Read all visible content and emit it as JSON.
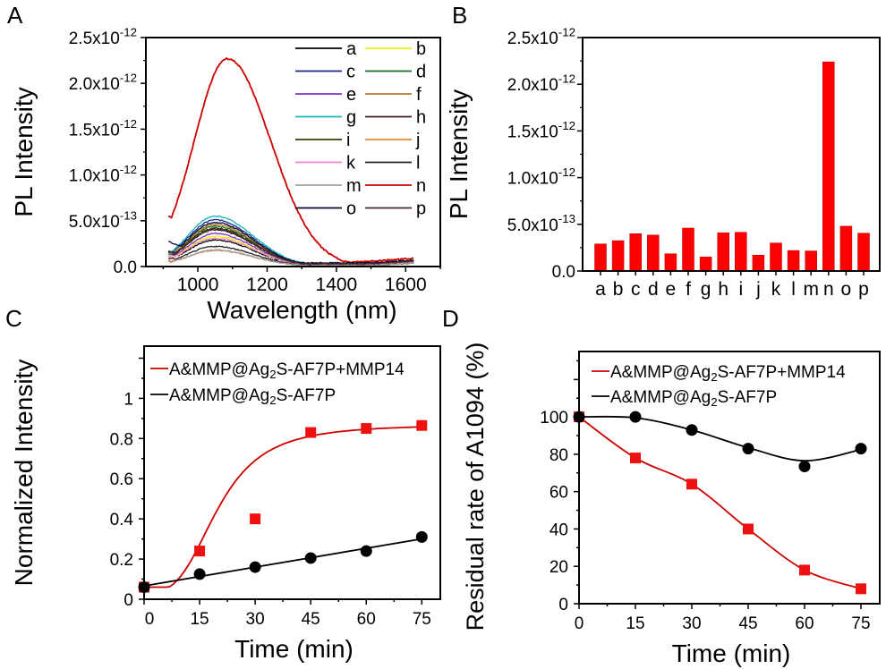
{
  "chart_data": [
    {
      "panel": "A",
      "type": "line",
      "xlabel": "Wavelength (nm)",
      "ylabel": "PL Intensity",
      "xlim": [
        850,
        1700
      ],
      "ylim": [
        0,
        2.5e-12
      ],
      "xticks": [
        1000,
        1200,
        1400,
        1600
      ],
      "xtick_labels": [
        "1000",
        "1200",
        "1400",
        "1600"
      ],
      "yticks": [
        0,
        5e-13,
        1e-12,
        1.5e-12,
        2e-12,
        2.5e-12
      ],
      "ytick_labels": [
        {
          "mant": "0.0",
          "exp": ""
        },
        {
          "mant": "5.0x10",
          "exp": "-13"
        },
        {
          "mant": "1.0x10",
          "exp": "-12"
        },
        {
          "mant": "1.5x10",
          "exp": "-12"
        },
        {
          "mant": "2.0x10",
          "exp": "-12"
        },
        {
          "mant": "2.5x10",
          "exp": "-12"
        }
      ],
      "legend_placement": "top-right",
      "x_range_data": [
        915,
        1625
      ],
      "series": [
        {
          "name": "a",
          "color": "#000000",
          "peak": 2.9e-13,
          "start": 1.6e-13,
          "end": 1.5e-14
        },
        {
          "name": "b",
          "color": "#f2f20a",
          "peak": 3.3e-13,
          "start": 1.4e-13,
          "end": 1e-14
        },
        {
          "name": "c",
          "color": "#1a2a8c",
          "peak": 5.1e-13,
          "start": 1.8e-13,
          "end": 3e-14
        },
        {
          "name": "d",
          "color": "#1e6e2e",
          "peak": 4.4e-13,
          "start": 1.7e-13,
          "end": 2.5e-14
        },
        {
          "name": "e",
          "color": "#7a33c9",
          "peak": 3.6e-13,
          "start": 1.5e-13,
          "end": 2e-14
        },
        {
          "name": "f",
          "color": "#b8782a",
          "peak": 4.6e-13,
          "start": 1.7e-13,
          "end": 2.5e-14
        },
        {
          "name": "g",
          "color": "#1fb5b5",
          "peak": 5.5e-13,
          "start": 1.6e-13,
          "end": 3e-14
        },
        {
          "name": "h",
          "color": "#3a1a1a",
          "peak": 4.1e-13,
          "start": 1.9e-13,
          "end": 3e-14
        },
        {
          "name": "i",
          "color": "#3d3d0a",
          "peak": 4.2e-13,
          "start": 1.9e-13,
          "end": 3e-14
        },
        {
          "name": "j",
          "color": "#e08a3c",
          "peak": 1.75e-13,
          "start": 7e-14,
          "end": 1e-14
        },
        {
          "name": "k",
          "color": "#ee88c8",
          "peak": 3.1e-13,
          "start": 1.2e-13,
          "end": 1.5e-14
        },
        {
          "name": "l",
          "color": "#222222",
          "peak": 2.2e-13,
          "start": 1e-13,
          "end": 1e-14
        },
        {
          "name": "m",
          "color": "#a0a0a0",
          "peak": 1.8e-13,
          "start": 6e-14,
          "end": 1e-14
        },
        {
          "name": "n",
          "color": "#cc0000",
          "peak": 2.27e-12,
          "start": 5.4e-13,
          "end": 1.2e-13
        },
        {
          "name": "o",
          "color": "#0a0a3a",
          "peak": 4.8e-13,
          "start": 3e-13,
          "end": 4e-14
        },
        {
          "name": "p",
          "color": "#4a2a2a",
          "peak": 4e-13,
          "start": 1.8e-13,
          "end": 3e-14
        }
      ],
      "peak_wavelength": {
        "n": 1085,
        "others": 1050
      }
    },
    {
      "panel": "B",
      "type": "bar",
      "xlabel": "",
      "ylabel": "PL Intensity",
      "ylim": [
        0,
        2.5e-12
      ],
      "yticks": [
        0,
        5e-13,
        1e-12,
        1.5e-12,
        2e-12,
        2.5e-12
      ],
      "ytick_labels": [
        {
          "mant": "0.0",
          "exp": ""
        },
        {
          "mant": "5.0x10",
          "exp": "-13"
        },
        {
          "mant": "1.0x10",
          "exp": "-12"
        },
        {
          "mant": "1.5x10",
          "exp": "-12"
        },
        {
          "mant": "2.0x10",
          "exp": "-12"
        },
        {
          "mant": "2.5x10",
          "exp": "-12"
        }
      ],
      "categories": [
        "a",
        "b",
        "c",
        "d",
        "e",
        "f",
        "g",
        "h",
        "i",
        "j",
        "k",
        "l",
        "m",
        "n",
        "o",
        "p"
      ],
      "values": [
        2.9e-13,
        3.25e-13,
        4e-13,
        3.85e-13,
        1.85e-13,
        4.6e-13,
        1.5e-13,
        4.1e-13,
        4.15e-13,
        1.7e-13,
        3e-13,
        2.2e-13,
        2.15e-13,
        2.24e-12,
        4.8e-13,
        4.05e-13
      ],
      "bar_color": "#ff0000"
    },
    {
      "panel": "C",
      "type": "scatter",
      "xlabel": "Time (min)",
      "ylabel": "Normalized Intensity",
      "xlim": [
        0,
        80
      ],
      "ylim": [
        0,
        1.26
      ],
      "xticks": [
        0,
        15,
        30,
        45,
        60,
        75
      ],
      "yticks": [
        0,
        0.2,
        0.4,
        0.6,
        0.8,
        1
      ],
      "ytick_labels": [
        "0",
        "0.2",
        "0.4",
        "0.6",
        "0.8",
        "1"
      ],
      "legend_placement": "top-left",
      "series": [
        {
          "name": "A&MMP@Ag",
          "sub": "2",
          "suffix": "S-AF7P+MMP14",
          "color": "#cc0000",
          "marker": "square",
          "marker_color": "#ee1111",
          "x": [
            0,
            15,
            30,
            45,
            60,
            75
          ],
          "y": [
            0.06,
            0.24,
            0.4,
            0.83,
            0.85,
            0.865
          ],
          "fit": "sigmoid"
        },
        {
          "name": "A&MMP@Ag",
          "sub": "2",
          "suffix": "S-AF7P",
          "color": "#000000",
          "marker": "circle",
          "marker_color": "#000000",
          "x": [
            0,
            15,
            30,
            45,
            60,
            75
          ],
          "y": [
            0.06,
            0.125,
            0.16,
            0.205,
            0.24,
            0.31
          ],
          "fit": "linear"
        }
      ]
    },
    {
      "panel": "D",
      "type": "scatter",
      "xlabel": "Time (min)",
      "ylabel": "Residual rate of A1094 (%)",
      "xlim": [
        0,
        80
      ],
      "ylim": [
        0,
        135
      ],
      "xticks": [
        0,
        15,
        30,
        45,
        60,
        75
      ],
      "yticks": [
        0,
        20,
        40,
        60,
        80,
        100
      ],
      "ytick_labels": [
        "0",
        "20",
        "40",
        "60",
        "80",
        "100"
      ],
      "legend_placement": "top-left",
      "series": [
        {
          "name": "A&MMP@Ag",
          "sub": "2",
          "suffix": "S-AF7P+MMP14",
          "color": "#cc0000",
          "marker": "square",
          "marker_color": "#ee1111",
          "x": [
            0,
            15,
            30,
            45,
            60,
            75
          ],
          "y": [
            100,
            78,
            64,
            40,
            18,
            8
          ],
          "fit": "smooth"
        },
        {
          "name": "A&MMP@Ag",
          "sub": "2",
          "suffix": "S-AF7P",
          "color": "#000000",
          "marker": "circle",
          "marker_color": "#000000",
          "x": [
            0,
            15,
            30,
            45,
            60,
            75
          ],
          "y": [
            100,
            100,
            93,
            83,
            73.5,
            83
          ],
          "fit": "smooth"
        }
      ]
    }
  ],
  "panel_letters": [
    "A",
    "B",
    "C",
    "D"
  ]
}
